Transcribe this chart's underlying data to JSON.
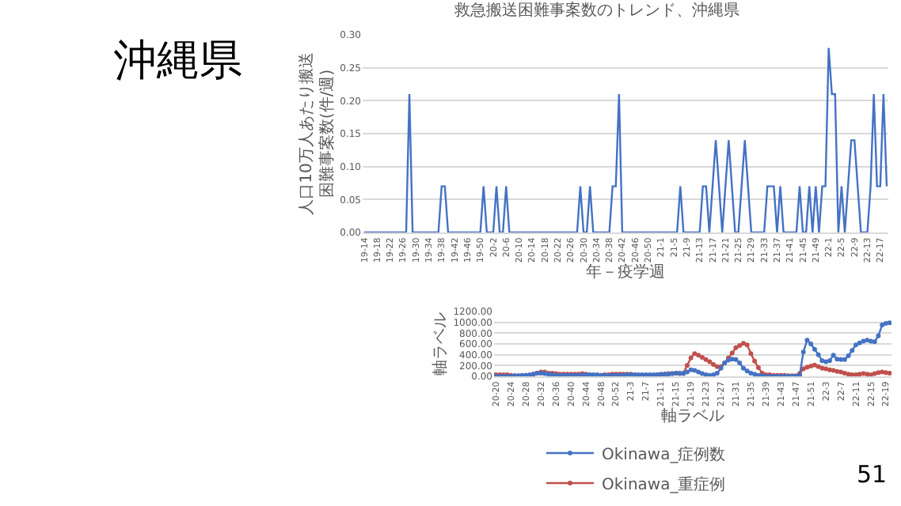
{
  "chart_data": [
    {
      "type": "line",
      "title": "救急搬送困難事案数のトレンド、沖縄県",
      "ylabel": "人口10万人あたり搬送困難事案数(件/週)",
      "xlabel": "年－疫学週",
      "annotations": [
        "沖縄県"
      ],
      "categories": [
        "19-14",
        null,
        null,
        null,
        "19-18",
        null,
        null,
        null,
        "19-22",
        null,
        null,
        null,
        "19-26",
        null,
        null,
        null,
        "19-30",
        null,
        null,
        null,
        "19-34",
        null,
        null,
        null,
        "19-38",
        null,
        null,
        null,
        "19-42",
        null,
        null,
        null,
        "19-46",
        null,
        null,
        null,
        "19-50",
        null,
        null,
        null,
        "20-2",
        null,
        null,
        null,
        "20-6",
        null,
        null,
        null,
        "20-10",
        null,
        null,
        null,
        "20-14",
        null,
        null,
        null,
        "20-18",
        null,
        null,
        null,
        "20-22",
        null,
        null,
        null,
        "20-26",
        null,
        null,
        null,
        "20-30",
        null,
        null,
        null,
        "20-34",
        null,
        null,
        null,
        "20-38",
        null,
        null,
        null,
        "20-42",
        null,
        null,
        null,
        "20-46",
        null,
        null,
        null,
        "20-50",
        null,
        null,
        null,
        "21-1",
        null,
        null,
        null,
        "21-5",
        null,
        null,
        null,
        "21-9",
        null,
        null,
        null,
        "21-13",
        null,
        null,
        null,
        "21-17",
        null,
        null,
        null,
        "21-21",
        null,
        null,
        null,
        "21-25",
        null,
        null,
        null,
        "21-29",
        null,
        null,
        null,
        "21-33",
        null,
        null,
        null,
        "21-37",
        null,
        null,
        null,
        "21-41",
        null,
        null,
        null,
        "21-45",
        null,
        null,
        null,
        "21-49",
        null,
        null,
        null,
        "22-1",
        null,
        null,
        null,
        "22-5",
        null,
        null,
        null,
        "22-9",
        null,
        null,
        null,
        "22-13",
        null,
        null,
        null,
        "22-17",
        null,
        null
      ],
      "series": [
        {
          "color": "#4472c4",
          "values": [
            0,
            0,
            0,
            0,
            0,
            0,
            0,
            0,
            0,
            0,
            0,
            0,
            0,
            0,
            0.21,
            0,
            0,
            0,
            0,
            0,
            0,
            0,
            0,
            0,
            0.07,
            0.07,
            0,
            0,
            0,
            0,
            0,
            0,
            0,
            0,
            0,
            0,
            0,
            0.07,
            0,
            0,
            0,
            0.07,
            0,
            0,
            0.07,
            0,
            0,
            0,
            0,
            0,
            0,
            0,
            0,
            0,
            0,
            0,
            0,
            0,
            0,
            0,
            0,
            0,
            0,
            0,
            0,
            0,
            0,
            0.07,
            0,
            0,
            0.07,
            0,
            0,
            0,
            0,
            0,
            0,
            0.07,
            0.07,
            0.21,
            0,
            0,
            0,
            0,
            0,
            0,
            0,
            0,
            0,
            0,
            0,
            0,
            0,
            0,
            0,
            0,
            0,
            0,
            0.07,
            0,
            0,
            0,
            0,
            0,
            0,
            0.07,
            0.07,
            0,
            0.07,
            0.14,
            0.07,
            0,
            0.07,
            0.14,
            0.07,
            0,
            0,
            0.07,
            0.14,
            0.07,
            0,
            0,
            0,
            0,
            0,
            0.07,
            0.07,
            0.07,
            0,
            0.07,
            0,
            0,
            0,
            0,
            0,
            0.07,
            0,
            0,
            0.07,
            0,
            0.07,
            0,
            0.07,
            0.07,
            0.28,
            0.21,
            0.21,
            0,
            0.07,
            0,
            0.07,
            0.14,
            0.14,
            0.07,
            0,
            0,
            0,
            0.07,
            0.21,
            0.07,
            0.07,
            0.21,
            0.07
          ]
        }
      ],
      "ylim": [
        0,
        0.3
      ],
      "yticks": [
        {
          "value": 0,
          "label": "0.00"
        },
        {
          "value": 0.05,
          "label": "0.05"
        },
        {
          "value": 0.1,
          "label": "0.10"
        },
        {
          "value": 0.15,
          "label": "0.15"
        },
        {
          "value": 0.2,
          "label": "0.20"
        },
        {
          "value": 0.25,
          "label": "0.25"
        },
        {
          "value": 0.3,
          "label": "0.30"
        }
      ],
      "grid": "y",
      "legend": false,
      "marker": "none"
    },
    {
      "type": "line",
      "xlabel": "軸ラベル",
      "ylabel": "軸ラベル",
      "annotations": [
        "51"
      ],
      "categories": [
        "20-20",
        null,
        null,
        null,
        "20-24",
        null,
        null,
        null,
        "20-28",
        null,
        null,
        null,
        "20-32",
        null,
        null,
        null,
        "20-36",
        null,
        null,
        null,
        "20-40",
        null,
        null,
        null,
        "20-44",
        null,
        null,
        null,
        "20-48",
        null,
        null,
        null,
        "20-52",
        null,
        null,
        null,
        "21-3",
        null,
        null,
        null,
        "21-7",
        null,
        null,
        null,
        "21-11",
        null,
        null,
        null,
        "21-15",
        null,
        null,
        null,
        "21-19",
        null,
        null,
        null,
        "21-23",
        null,
        null,
        null,
        "21-27",
        null,
        null,
        null,
        "21-31",
        null,
        null,
        null,
        "21-35",
        null,
        null,
        null,
        "21-39",
        null,
        null,
        null,
        "21-43",
        null,
        null,
        null,
        "21-47",
        null,
        null,
        null,
        "21-51",
        null,
        null,
        null,
        "22-3",
        null,
        null,
        null,
        "22-7",
        null,
        null,
        null,
        "22-11",
        null,
        null,
        null,
        "22-15",
        null,
        null,
        null,
        "22-19",
        null
      ],
      "series": [
        {
          "name": "Okinawa_症例数",
          "color": "#4472c4",
          "values": [
            0,
            0,
            0,
            0,
            0,
            10,
            10,
            20,
            20,
            30,
            40,
            60,
            60,
            50,
            40,
            30,
            20,
            20,
            20,
            20,
            20,
            20,
            20,
            20,
            30,
            30,
            30,
            30,
            20,
            20,
            20,
            20,
            20,
            20,
            20,
            30,
            30,
            30,
            30,
            30,
            30,
            30,
            30,
            30,
            40,
            40,
            40,
            50,
            60,
            60,
            50,
            80,
            120,
            110,
            80,
            50,
            30,
            20,
            30,
            60,
            150,
            250,
            300,
            320,
            310,
            250,
            150,
            100,
            60,
            40,
            20,
            10,
            0,
            0,
            0,
            0,
            0,
            0,
            0,
            0,
            0,
            20,
            450,
            670,
            600,
            500,
            400,
            290,
            270,
            290,
            390,
            320,
            310,
            310,
            380,
            480,
            580,
            620,
            650,
            670,
            650,
            640,
            750,
            950,
            980,
            990
          ]
        },
        {
          "name": "Okinawa_重症例",
          "color": "#c0504d",
          "values": [
            30,
            30,
            30,
            30,
            20,
            10,
            10,
            10,
            20,
            20,
            40,
            60,
            80,
            80,
            60,
            60,
            50,
            40,
            40,
            40,
            40,
            40,
            40,
            50,
            40,
            30,
            20,
            20,
            20,
            30,
            30,
            40,
            40,
            40,
            40,
            40,
            40,
            30,
            20,
            20,
            20,
            20,
            20,
            30,
            30,
            40,
            50,
            50,
            60,
            50,
            60,
            200,
            340,
            420,
            390,
            350,
            310,
            270,
            220,
            180,
            180,
            250,
            340,
            430,
            530,
            570,
            610,
            580,
            420,
            280,
            160,
            60,
            30,
            30,
            20,
            20,
            20,
            20,
            10,
            10,
            10,
            50,
            140,
            170,
            190,
            210,
            180,
            150,
            140,
            120,
            110,
            90,
            80,
            60,
            40,
            30,
            30,
            40,
            50,
            40,
            30,
            50,
            70,
            80,
            70,
            60
          ]
        }
      ],
      "ylim": [
        0,
        1200
      ],
      "yticks": [
        {
          "value": 0,
          "label": "0.00"
        },
        {
          "value": 200,
          "label": "200.00"
        },
        {
          "value": 400,
          "label": "400.00"
        },
        {
          "value": 600,
          "label": "600.00"
        },
        {
          "value": 800,
          "label": "800.00"
        },
        {
          "value": 1000,
          "label": "1000.00"
        },
        {
          "value": 1200,
          "label": "1200.00"
        }
      ],
      "grid": "y",
      "legend": "bottom",
      "marker": "circle"
    }
  ]
}
